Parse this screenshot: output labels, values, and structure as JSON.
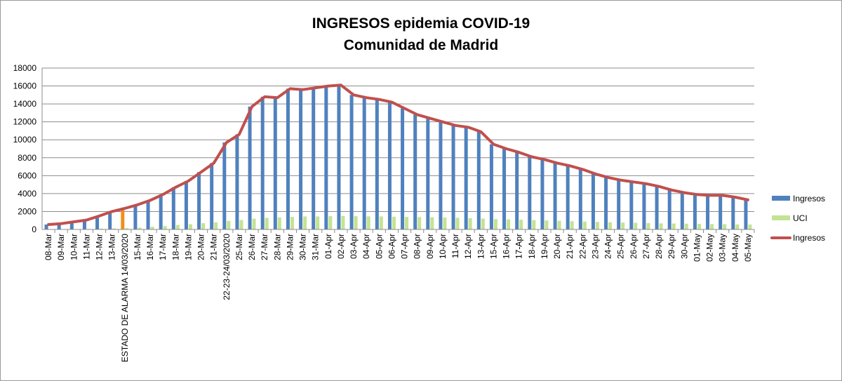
{
  "chart_data": {
    "type": "bar",
    "title_line1": "INGRESOS epidemia COVID-19",
    "title_line2": "Comunidad de Madrid",
    "xlabel": "",
    "ylabel": "",
    "ylim": [
      0,
      18000
    ],
    "yticks": [
      "0",
      "2000",
      "4000",
      "6000",
      "8000",
      "10000",
      "12000",
      "14000",
      "16000",
      "18000"
    ],
    "grid": true,
    "legend_position": "right",
    "categories": [
      "08-Mar",
      "09-Mar",
      "10-Mar",
      "11-Mar",
      "12-Mar",
      "13-Mar",
      "ESTADO DE ALARMA 14/03/2020",
      "15-Mar",
      "16-Mar",
      "17-Mar",
      "18-Mar",
      "19-Mar",
      "20-Mar",
      "21-Mar",
      "22-23-24/03/2020",
      "25-Mar",
      "26-Mar",
      "27-Mar",
      "28-Mar",
      "29-Mar",
      "30-Mar",
      "31-Mar",
      "01-Apr",
      "02-Apr",
      "03-Apr",
      "04-Apr",
      "05-Apr",
      "06-Apr",
      "07-Apr",
      "08-Apr",
      "09-Apr",
      "10-Apr",
      "11-Apr",
      "12-Apr",
      "13-Apr",
      "15-Apr",
      "16-Apr",
      "17-Apr",
      "18-Apr",
      "19-Apr",
      "20-Apr",
      "21-Apr",
      "22-Apr",
      "23-Apr",
      "24-Apr",
      "25-Apr",
      "26-Apr",
      "27-Apr",
      "28-Apr",
      "29-Apr",
      "30-Apr",
      "01-May",
      "02-May",
      "03-May",
      "04-May",
      "05-May"
    ],
    "highlight_category": "ESTADO DE ALARMA 14/03/2020",
    "highlight_color": "#f28e1c",
    "series": [
      {
        "name": "Ingresos",
        "type": "bar",
        "color": "#4f81bd",
        "values": [
          550,
          650,
          850,
          1050,
          1500,
          2000,
          2350,
          2750,
          3250,
          3900,
          4700,
          5400,
          6400,
          7400,
          9700,
          10600,
          13700,
          14800,
          14700,
          15700,
          15600,
          15800,
          16000,
          16100,
          15000,
          14700,
          14500,
          14200,
          13500,
          12800,
          12400,
          12000,
          11600,
          11400,
          10900,
          9500,
          9000,
          8600,
          8100,
          7800,
          7400,
          7100,
          6700,
          6200,
          5800,
          5500,
          5300,
          5100,
          4800,
          4400,
          4100,
          3900,
          3800,
          3800,
          3600,
          3300
        ]
      },
      {
        "name": "UCI",
        "type": "bar",
        "color": "#c3e392",
        "values": [
          20,
          30,
          40,
          60,
          90,
          120,
          150,
          200,
          300,
          380,
          500,
          580,
          700,
          800,
          950,
          1050,
          1200,
          1300,
          1350,
          1400,
          1450,
          1450,
          1480,
          1500,
          1480,
          1460,
          1450,
          1420,
          1400,
          1380,
          1360,
          1330,
          1300,
          1260,
          1220,
          1160,
          1120,
          1080,
          1040,
          1000,
          960,
          920,
          880,
          840,
          800,
          770,
          740,
          710,
          680,
          660,
          640,
          620,
          600,
          580,
          560,
          540
        ]
      },
      {
        "name": "Ingresos",
        "type": "line",
        "color": "#c0504d",
        "values": [
          550,
          650,
          850,
          1050,
          1500,
          2000,
          2350,
          2750,
          3250,
          3900,
          4700,
          5400,
          6400,
          7400,
          9700,
          10600,
          13700,
          14800,
          14700,
          15700,
          15600,
          15800,
          16000,
          16100,
          15000,
          14700,
          14500,
          14200,
          13500,
          12800,
          12400,
          12000,
          11600,
          11400,
          10900,
          9500,
          9000,
          8600,
          8100,
          7800,
          7400,
          7100,
          6700,
          6200,
          5800,
          5500,
          5300,
          5100,
          4800,
          4400,
          4100,
          3900,
          3800,
          3800,
          3600,
          3300
        ]
      }
    ]
  }
}
